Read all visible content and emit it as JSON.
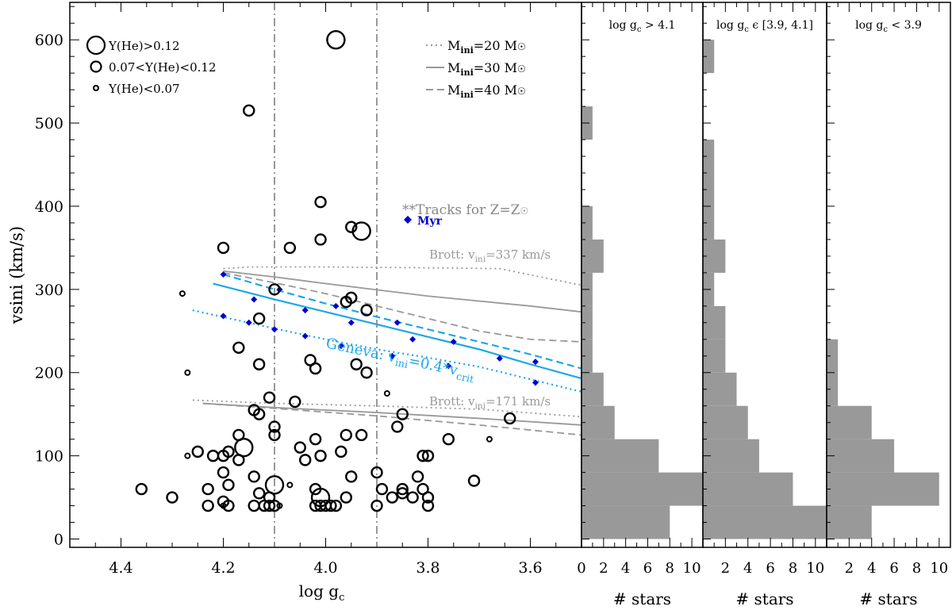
{
  "chart_data": [
    {
      "type": "scatter",
      "xlabel": "log g",
      "xlabel_sub": "c",
      "ylabel": "vsini (km/s)",
      "xlim": [
        4.5,
        3.5
      ],
      "ylim": [
        -10,
        645
      ],
      "x_axis_reversed": true,
      "xticks": [
        "4.4",
        "4.2",
        "4.0",
        "3.8",
        "3.6"
      ],
      "yticks": [
        "0",
        "100",
        "200",
        "300",
        "400",
        "500",
        "600"
      ],
      "vlines": [
        4.1,
        3.9
      ],
      "size_legend": [
        {
          "label": "Y(He)>0.12",
          "class": "large"
        },
        {
          "label": "0.07<Y(He)<0.12",
          "class": "medium"
        },
        {
          "label": "Y(He)<0.07",
          "class": "small"
        }
      ],
      "line_legend": [
        {
          "label": "M",
          "sub": "ini",
          "rest": "=20 M",
          "sun": "☉",
          "style": "dotted",
          "color": "#999999"
        },
        {
          "label": "M",
          "sub": "ini",
          "rest": "=30 M",
          "sun": "☉",
          "style": "solid",
          "color": "#999999"
        },
        {
          "label": "M",
          "sub": "ini",
          "rest": "=40 M",
          "sun": "☉",
          "style": "dashed",
          "color": "#999999"
        }
      ],
      "tracks_note": {
        "prefix": "**Tracks for Z=Z",
        "sun": "☉"
      },
      "myr_label": "Myr",
      "annotations": {
        "brott_high": {
          "text": "Brott: v",
          "sub": "ini",
          "rest": "=337 km/s"
        },
        "brott_low": {
          "text": "Brott: v",
          "sub": "ini",
          "rest": "=171 km/s"
        },
        "geneva": {
          "text": "Geneva: v",
          "sub": "ini",
          "rest": "=0.4*v",
          "sub2": "crit"
        }
      },
      "stars": [
        {
          "x": 3.98,
          "y": 600,
          "he": "large"
        },
        {
          "x": 4.15,
          "y": 515,
          "he": "medium"
        },
        {
          "x": 4.01,
          "y": 405,
          "he": "medium"
        },
        {
          "x": 3.95,
          "y": 375,
          "he": "medium"
        },
        {
          "x": 3.93,
          "y": 370,
          "he": "large"
        },
        {
          "x": 4.2,
          "y": 350,
          "he": "medium"
        },
        {
          "x": 4.07,
          "y": 350,
          "he": "medium"
        },
        {
          "x": 4.01,
          "y": 360,
          "he": "medium"
        },
        {
          "x": 4.28,
          "y": 295,
          "he": "small"
        },
        {
          "x": 4.1,
          "y": 300,
          "he": "medium"
        },
        {
          "x": 3.96,
          "y": 285,
          "he": "medium"
        },
        {
          "x": 3.95,
          "y": 290,
          "he": "medium"
        },
        {
          "x": 3.92,
          "y": 275,
          "he": "medium"
        },
        {
          "x": 4.13,
          "y": 265,
          "he": "medium"
        },
        {
          "x": 4.17,
          "y": 230,
          "he": "medium"
        },
        {
          "x": 4.03,
          "y": 215,
          "he": "medium"
        },
        {
          "x": 4.02,
          "y": 205,
          "he": "medium"
        },
        {
          "x": 3.94,
          "y": 210,
          "he": "medium"
        },
        {
          "x": 3.92,
          "y": 200,
          "he": "medium"
        },
        {
          "x": 4.13,
          "y": 210,
          "he": "medium"
        },
        {
          "x": 4.27,
          "y": 200,
          "he": "small"
        },
        {
          "x": 3.88,
          "y": 175,
          "he": "small"
        },
        {
          "x": 4.11,
          "y": 170,
          "he": "medium"
        },
        {
          "x": 4.06,
          "y": 165,
          "he": "medium"
        },
        {
          "x": 4.14,
          "y": 155,
          "he": "medium"
        },
        {
          "x": 4.13,
          "y": 150,
          "he": "medium"
        },
        {
          "x": 3.85,
          "y": 150,
          "he": "medium"
        },
        {
          "x": 3.64,
          "y": 145,
          "he": "medium"
        },
        {
          "x": 4.1,
          "y": 135,
          "he": "medium"
        },
        {
          "x": 4.1,
          "y": 125,
          "he": "medium"
        },
        {
          "x": 4.17,
          "y": 125,
          "he": "medium"
        },
        {
          "x": 3.96,
          "y": 125,
          "he": "medium"
        },
        {
          "x": 3.93,
          "y": 125,
          "he": "medium"
        },
        {
          "x": 3.86,
          "y": 135,
          "he": "medium"
        },
        {
          "x": 4.02,
          "y": 120,
          "he": "medium"
        },
        {
          "x": 3.76,
          "y": 120,
          "he": "medium"
        },
        {
          "x": 3.68,
          "y": 120,
          "he": "small"
        },
        {
          "x": 4.16,
          "y": 110,
          "he": "large"
        },
        {
          "x": 4.05,
          "y": 110,
          "he": "medium"
        },
        {
          "x": 4.25,
          "y": 105,
          "he": "medium"
        },
        {
          "x": 4.22,
          "y": 100,
          "he": "medium"
        },
        {
          "x": 4.2,
          "y": 100,
          "he": "medium"
        },
        {
          "x": 4.19,
          "y": 105,
          "he": "medium"
        },
        {
          "x": 4.17,
          "y": 95,
          "he": "medium"
        },
        {
          "x": 4.27,
          "y": 100,
          "he": "small"
        },
        {
          "x": 4.04,
          "y": 95,
          "he": "medium"
        },
        {
          "x": 4.01,
          "y": 100,
          "he": "medium"
        },
        {
          "x": 3.97,
          "y": 105,
          "he": "medium"
        },
        {
          "x": 3.81,
          "y": 100,
          "he": "medium"
        },
        {
          "x": 3.8,
          "y": 100,
          "he": "medium"
        },
        {
          "x": 4.2,
          "y": 80,
          "he": "medium"
        },
        {
          "x": 4.14,
          "y": 75,
          "he": "medium"
        },
        {
          "x": 3.95,
          "y": 75,
          "he": "medium"
        },
        {
          "x": 3.9,
          "y": 80,
          "he": "medium"
        },
        {
          "x": 3.82,
          "y": 75,
          "he": "medium"
        },
        {
          "x": 4.36,
          "y": 60,
          "he": "medium"
        },
        {
          "x": 4.23,
          "y": 60,
          "he": "medium"
        },
        {
          "x": 4.19,
          "y": 65,
          "he": "medium"
        },
        {
          "x": 4.1,
          "y": 65,
          "he": "large"
        },
        {
          "x": 4.13,
          "y": 55,
          "he": "medium"
        },
        {
          "x": 4.07,
          "y": 65,
          "he": "small"
        },
        {
          "x": 4.02,
          "y": 60,
          "he": "medium"
        },
        {
          "x": 3.89,
          "y": 60,
          "he": "medium"
        },
        {
          "x": 3.85,
          "y": 60,
          "he": "medium"
        },
        {
          "x": 3.81,
          "y": 60,
          "he": "medium"
        },
        {
          "x": 3.71,
          "y": 70,
          "he": "medium"
        },
        {
          "x": 4.3,
          "y": 50,
          "he": "medium"
        },
        {
          "x": 4.11,
          "y": 50,
          "he": "medium"
        },
        {
          "x": 4.01,
          "y": 50,
          "he": "large"
        },
        {
          "x": 3.96,
          "y": 50,
          "he": "medium"
        },
        {
          "x": 3.87,
          "y": 50,
          "he": "medium"
        },
        {
          "x": 3.85,
          "y": 55,
          "he": "medium"
        },
        {
          "x": 3.83,
          "y": 50,
          "he": "medium"
        },
        {
          "x": 3.8,
          "y": 50,
          "he": "medium"
        },
        {
          "x": 4.23,
          "y": 40,
          "he": "medium"
        },
        {
          "x": 4.2,
          "y": 45,
          "he": "medium"
        },
        {
          "x": 4.19,
          "y": 40,
          "he": "medium"
        },
        {
          "x": 4.2,
          "y": 40,
          "he": "small"
        },
        {
          "x": 4.14,
          "y": 40,
          "he": "medium"
        },
        {
          "x": 4.12,
          "y": 40,
          "he": "medium"
        },
        {
          "x": 4.11,
          "y": 40,
          "he": "medium"
        },
        {
          "x": 4.1,
          "y": 40,
          "he": "medium"
        },
        {
          "x": 4.09,
          "y": 40,
          "he": "small"
        },
        {
          "x": 4.02,
          "y": 40,
          "he": "medium"
        },
        {
          "x": 4.01,
          "y": 40,
          "he": "medium"
        },
        {
          "x": 4.0,
          "y": 40,
          "he": "medium"
        },
        {
          "x": 3.99,
          "y": 40,
          "he": "medium"
        },
        {
          "x": 3.98,
          "y": 40,
          "he": "medium"
        },
        {
          "x": 3.9,
          "y": 40,
          "he": "medium"
        },
        {
          "x": 3.8,
          "y": 40,
          "he": "medium"
        }
      ],
      "tracks": [
        {
          "name": "Brott 337 km/s, 20 Msun",
          "color": "#999999",
          "style": "dotted",
          "x": [
            4.2,
            4.15,
            4.0,
            3.8,
            3.66,
            3.5
          ],
          "y": [
            325,
            327,
            327,
            326,
            325,
            305
          ]
        },
        {
          "name": "Brott 337 km/s, 30 Msun",
          "color": "#999999",
          "style": "solid",
          "x": [
            4.2,
            4.1,
            4.0,
            3.8,
            3.6,
            3.5
          ],
          "y": [
            322,
            315,
            307,
            292,
            280,
            273
          ]
        },
        {
          "name": "Brott 337 km/s, 40 Msun",
          "color": "#999999",
          "style": "dashed",
          "x": [
            4.2,
            4.1,
            4.0,
            3.9,
            3.8,
            3.7,
            3.6,
            3.5
          ],
          "y": [
            320,
            308,
            295,
            280,
            265,
            250,
            240,
            237
          ]
        },
        {
          "name": "Brott 171 km/s, 20 Msun",
          "color": "#999999",
          "style": "dotted",
          "x": [
            4.26,
            4.1,
            3.9,
            3.7,
            3.5
          ],
          "y": [
            167,
            163,
            160,
            156,
            147
          ]
        },
        {
          "name": "Brott 171 km/s, 30 Msun",
          "color": "#999999",
          "style": "solid",
          "x": [
            4.24,
            4.1,
            3.9,
            3.7,
            3.5
          ],
          "y": [
            163,
            158,
            152,
            145,
            137
          ]
        },
        {
          "name": "Brott 171 km/s, 40 Msun",
          "color": "#999999",
          "style": "dashed",
          "x": [
            4.24,
            4.1,
            3.9,
            3.7,
            3.5
          ],
          "y": [
            163,
            157,
            148,
            137,
            125
          ]
        },
        {
          "name": "Geneva 40 Msun",
          "color": "#1ea7e6",
          "style": "dashed",
          "x": [
            4.2,
            4.1,
            4.0,
            3.9,
            3.8,
            3.7,
            3.6,
            3.5
          ],
          "y": [
            318,
            300,
            283,
            267,
            252,
            237,
            222,
            205
          ]
        },
        {
          "name": "Geneva 30 Msun",
          "color": "#1ea7e6",
          "style": "solid",
          "x": [
            4.22,
            4.1,
            4.0,
            3.9,
            3.8,
            3.7,
            3.6,
            3.5
          ],
          "y": [
            307,
            288,
            273,
            258,
            243,
            228,
            210,
            193
          ]
        },
        {
          "name": "Geneva 20 Msun",
          "color": "#1ea7e6",
          "style": "dotted",
          "x": [
            4.26,
            4.1,
            4.0,
            3.9,
            3.8,
            3.7,
            3.6,
            3.5
          ],
          "y": [
            275,
            253,
            240,
            228,
            218,
            207,
            192,
            177
          ]
        }
      ],
      "myr_markers": [
        {
          "x": 4.2,
          "y": 318
        },
        {
          "x": 4.09,
          "y": 300
        },
        {
          "x": 3.98,
          "y": 280
        },
        {
          "x": 3.86,
          "y": 260
        },
        {
          "x": 3.75,
          "y": 237
        },
        {
          "x": 3.59,
          "y": 213
        },
        {
          "x": 4.14,
          "y": 288
        },
        {
          "x": 4.04,
          "y": 275
        },
        {
          "x": 3.95,
          "y": 260
        },
        {
          "x": 3.83,
          "y": 240
        },
        {
          "x": 3.66,
          "y": 217
        },
        {
          "x": 4.2,
          "y": 268
        },
        {
          "x": 4.15,
          "y": 260
        },
        {
          "x": 4.1,
          "y": 252
        },
        {
          "x": 4.04,
          "y": 244
        },
        {
          "x": 3.97,
          "y": 232
        },
        {
          "x": 3.87,
          "y": 220
        },
        {
          "x": 3.76,
          "y": 208
        },
        {
          "x": 3.59,
          "y": 188
        }
      ],
      "colors": {
        "star_edge": "#000000",
        "geneva": "#1ea7e6",
        "brott": "#999999",
        "myr": "#0000cc",
        "guide": "#999999"
      }
    },
    {
      "type": "bar",
      "orientation": "horizontal",
      "title": "log g",
      "title_sub": "c",
      "title_rest": " > 4.1",
      "xlabel": "# stars",
      "xticks": [
        "0",
        "2",
        "4",
        "6",
        "8",
        "10"
      ],
      "xlim": [
        0,
        11
      ],
      "bin_edges": [
        0,
        40,
        80,
        120,
        160,
        200,
        240,
        280,
        320,
        360,
        400,
        440,
        480,
        520,
        560,
        600,
        640
      ],
      "values": [
        8,
        11,
        7,
        3,
        2,
        1,
        1,
        1,
        2,
        1,
        0,
        0,
        1,
        0,
        0,
        0
      ],
      "color": "#999999"
    },
    {
      "type": "bar",
      "orientation": "horizontal",
      "title": "log g",
      "title_sub": "c",
      "title_rest": " ϵ [3.9, 4.1]",
      "xlabel": "# stars",
      "xticks": [
        "2",
        "4",
        "6",
        "8",
        "10"
      ],
      "xlim": [
        0,
        11
      ],
      "bin_edges": [
        0,
        40,
        80,
        120,
        160,
        200,
        240,
        280,
        320,
        360,
        400,
        440,
        480,
        520,
        560,
        600,
        640
      ],
      "values": [
        11,
        8,
        5,
        4,
        3,
        2,
        2,
        1,
        2,
        1,
        1,
        1,
        0,
        0,
        1,
        0
      ],
      "color": "#999999"
    },
    {
      "type": "bar",
      "orientation": "horizontal",
      "title": "log g",
      "title_sub": "c",
      "title_rest": " < 3.9",
      "xlabel": "# stars",
      "xticks": [
        "2",
        "4",
        "6",
        "8",
        "10"
      ],
      "xlim": [
        0,
        11
      ],
      "bin_edges": [
        0,
        40,
        80,
        120,
        160,
        200,
        240,
        280,
        320,
        360,
        400,
        440,
        480,
        520,
        560,
        600,
        640
      ],
      "values": [
        4,
        10,
        6,
        4,
        1,
        1,
        0,
        0,
        0,
        0,
        0,
        0,
        0,
        0,
        0,
        0
      ],
      "color": "#999999"
    }
  ]
}
